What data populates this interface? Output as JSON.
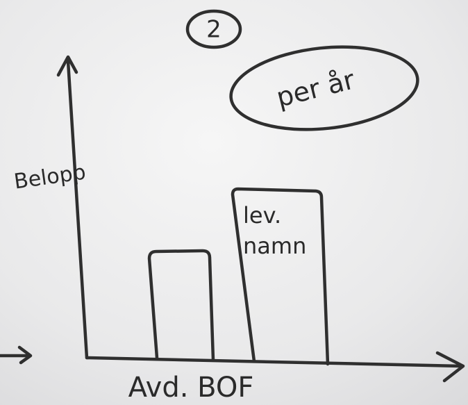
{
  "header": {
    "badge": "2",
    "note": "per år"
  },
  "sketch": {
    "y_axis_label": "Belopp",
    "x_axis_label": "Avd. BOF",
    "bar_label": [
      "lev.",
      "namn"
    ]
  }
}
